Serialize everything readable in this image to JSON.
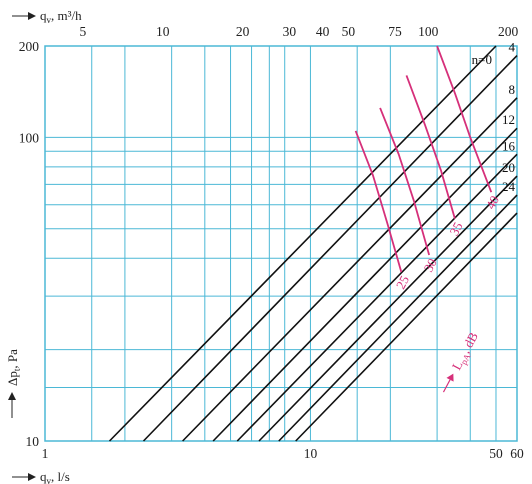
{
  "chart_data": {
    "type": "line",
    "x_axis_bottom": {
      "label_main": "q",
      "label_sub": "v",
      "label_unit": ", l/s",
      "scale": "log",
      "range": [
        1,
        60
      ],
      "ticks": [
        {
          "value": 1,
          "label": "1"
        },
        {
          "value": 10,
          "label": "10"
        },
        {
          "value": 50,
          "label": "50"
        },
        {
          "value": 60,
          "label": "60"
        }
      ],
      "gridlines": [
        1.5,
        2,
        3,
        4,
        5,
        6,
        7,
        8,
        10,
        15,
        20,
        30,
        40,
        50,
        60
      ]
    },
    "x_axis_top": {
      "label_main": "q",
      "label_sub": "v",
      "label_unit": ", m³/h",
      "scale": "log",
      "ticks": [
        {
          "value": 5,
          "label": "5"
        },
        {
          "value": 10,
          "label": "10"
        },
        {
          "value": 20,
          "label": "20"
        },
        {
          "value": 30,
          "label": "30"
        },
        {
          "value": 40,
          "label": "40"
        },
        {
          "value": 50,
          "label": "50"
        },
        {
          "value": 75,
          "label": "75"
        },
        {
          "value": 100,
          "label": "100"
        },
        {
          "value": 200,
          "label": "200"
        }
      ]
    },
    "y_axis": {
      "label_main": "Δp",
      "label_sub": "t",
      "label_unit": ", Pa",
      "scale": "log",
      "range": [
        10,
        200
      ],
      "ticks": [
        {
          "value": 10,
          "label": "10"
        },
        {
          "value": 100,
          "label": "100"
        },
        {
          "value": 200,
          "label": "200"
        }
      ],
      "gridlines": [
        15,
        20,
        30,
        40,
        50,
        60,
        70,
        80,
        90,
        100
      ]
    },
    "series": [
      {
        "name": "n=0",
        "x_at_dp10": 1.75,
        "x_at_dp200": 50
      },
      {
        "name": "4",
        "x_at_dp10": 2.35,
        "x_at_dp200": 65
      },
      {
        "name": "8",
        "x_at_dp10": 3.3,
        "x_at_dp200": 93
      },
      {
        "name": "12",
        "x_at_dp10": 4.3,
        "x_at_dp200": 120
      },
      {
        "name": "16",
        "x_at_dp10": 5.3,
        "x_at_dp200": 150
      },
      {
        "name": "20",
        "x_at_dp10": 6.4,
        "x_at_dp200": 180
      },
      {
        "name": "24",
        "x_at_dp10": 7.6,
        "x_at_dp200": 210
      },
      {
        "name": "",
        "x_at_dp10": 8.8,
        "x_at_dp200": 245
      }
    ],
    "sound_curves": [
      {
        "name": "25",
        "points": [
          [
            14.8,
            105
          ],
          [
            17.2,
            75
          ],
          [
            19.5,
            52
          ],
          [
            22,
            36
          ]
        ]
      },
      {
        "name": "30",
        "points": [
          [
            18.3,
            125
          ],
          [
            21.5,
            88
          ],
          [
            24.5,
            62
          ],
          [
            28,
            41
          ]
        ]
      },
      {
        "name": "35",
        "points": [
          [
            23,
            160
          ],
          [
            27,
            110
          ],
          [
            31,
            78
          ],
          [
            35,
            54
          ]
        ]
      },
      {
        "name": "40",
        "points": [
          [
            30,
            200
          ],
          [
            35,
            140
          ],
          [
            40,
            100
          ],
          [
            48,
            66
          ]
        ]
      }
    ],
    "sound_label": {
      "main": "L",
      "sub": "pA",
      "unit": ", dB"
    },
    "colors": {
      "grid": "#4bb8d6",
      "lines": "#111111",
      "sound": "#d6307a",
      "axis": "#4bb8d6"
    },
    "grid": true
  }
}
